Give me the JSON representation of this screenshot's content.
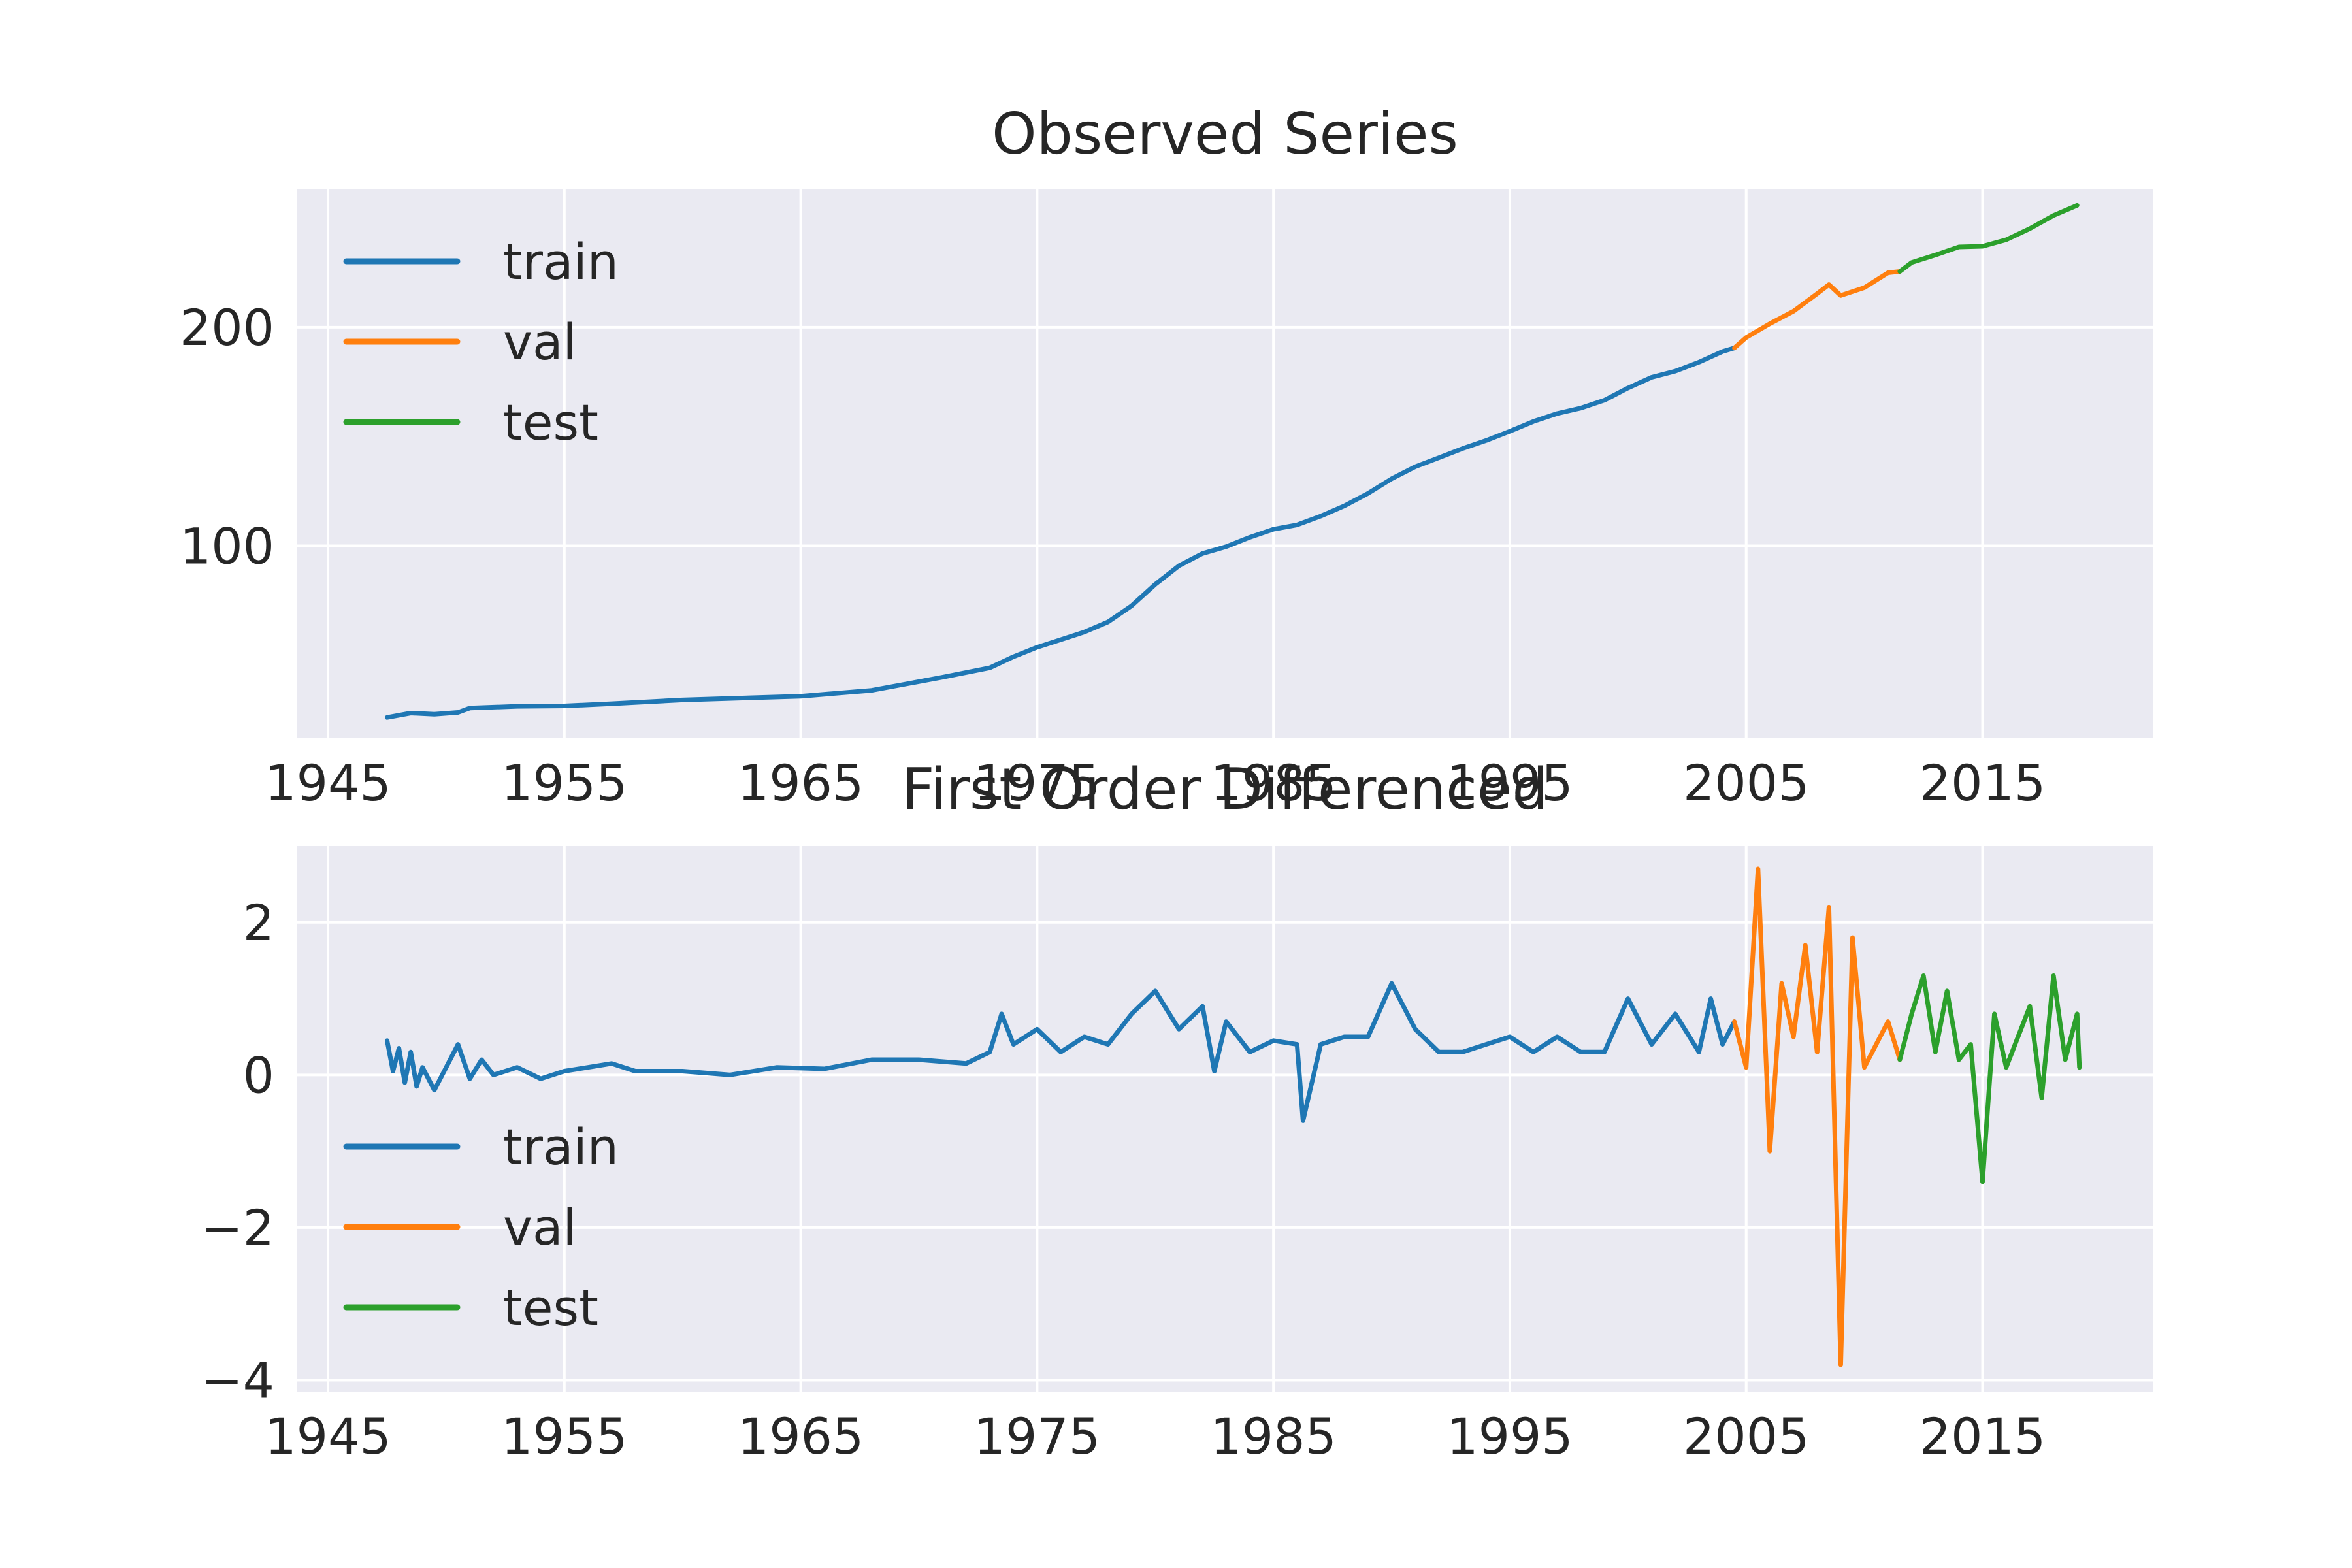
{
  "chart_data": [
    {
      "type": "line",
      "title": "Observed Series",
      "xlabel": "",
      "ylabel": "",
      "xlim": [
        1943.7,
        2022.2
      ],
      "ylim": [
        12,
        263
      ],
      "x_ticks": [
        "1945",
        "1955",
        "1965",
        "1975",
        "1985",
        "1995",
        "2005",
        "2015"
      ],
      "y_ticks": [
        "100",
        "200"
      ],
      "grid": true,
      "legend_position": "upper-left",
      "series": [
        {
          "name": "train",
          "color": "#1f77b4",
          "points": [
            [
              1947.5,
              21.5
            ],
            [
              1948.5,
              23.5
            ],
            [
              1949.5,
              23.0
            ],
            [
              1950.5,
              23.8
            ],
            [
              1951.0,
              25.8
            ],
            [
              1953,
              26.6
            ],
            [
              1955,
              26.8
            ],
            [
              1957,
              27.8
            ],
            [
              1960,
              29.5
            ],
            [
              1965,
              31.2
            ],
            [
              1968,
              33.9
            ],
            [
              1971,
              39.9
            ],
            [
              1973,
              44.2
            ],
            [
              1974,
              49.3
            ],
            [
              1975,
              53.6
            ],
            [
              1977,
              60.6
            ],
            [
              1978,
              65.2
            ],
            [
              1979,
              72.6
            ],
            [
              1980,
              82.4
            ],
            [
              1981,
              90.9
            ],
            [
              1982,
              96.5
            ],
            [
              1983,
              99.6
            ],
            [
              1984,
              103.9
            ],
            [
              1985,
              107.6
            ],
            [
              1986,
              109.6
            ],
            [
              1987,
              113.6
            ],
            [
              1988,
              118.3
            ],
            [
              1989,
              124.0
            ],
            [
              1990,
              130.7
            ],
            [
              1991,
              136.2
            ],
            [
              1992,
              140.3
            ],
            [
              1993,
              144.5
            ],
            [
              1994,
              148.2
            ],
            [
              1995,
              152.4
            ],
            [
              1996,
              156.9
            ],
            [
              1997,
              160.5
            ],
            [
              1998,
              163.0
            ],
            [
              1999,
              166.6
            ],
            [
              2000,
              172.2
            ],
            [
              2001,
              177.1
            ],
            [
              2002,
              179.9
            ],
            [
              2003,
              184.0
            ],
            [
              2004,
              188.9
            ],
            [
              2004.5,
              190.5
            ]
          ]
        },
        {
          "name": "val",
          "color": "#ff7f0e",
          "points": [
            [
              2004.5,
              190.5
            ],
            [
              2005,
              195.3
            ],
            [
              2006,
              201.6
            ],
            [
              2007,
              207.3
            ],
            [
              2008,
              215.3
            ],
            [
              2008.5,
              219.5
            ],
            [
              2009,
              214.5
            ],
            [
              2010,
              218.1
            ],
            [
              2011,
              224.9
            ],
            [
              2011.5,
              225.5
            ]
          ]
        },
        {
          "name": "test",
          "color": "#2ca02c",
          "points": [
            [
              2011.5,
              225.5
            ],
            [
              2012,
              229.6
            ],
            [
              2013,
              233.0
            ],
            [
              2014,
              236.7
            ],
            [
              2015,
              237.0
            ],
            [
              2016,
              240.0
            ],
            [
              2017,
              245.1
            ],
            [
              2018,
              251.1
            ],
            [
              2019,
              255.7
            ]
          ]
        }
      ]
    },
    {
      "type": "line",
      "title": "First Order Differenced",
      "xlabel": "",
      "ylabel": "",
      "xlim": [
        1943.7,
        2022.2
      ],
      "ylim": [
        -4.15,
        3.0
      ],
      "x_ticks": [
        "1945",
        "1955",
        "1965",
        "1975",
        "1985",
        "1995",
        "2005",
        "2015"
      ],
      "y_ticks": [
        "−4",
        "−2",
        "0",
        "2"
      ],
      "grid": true,
      "legend_position": "lower-left",
      "series": [
        {
          "name": "train",
          "color": "#1f77b4",
          "points": [
            [
              1947.5,
              0.45
            ],
            [
              1947.75,
              0.05
            ],
            [
              1948.0,
              0.35
            ],
            [
              1948.25,
              -0.1
            ],
            [
              1948.5,
              0.3
            ],
            [
              1948.75,
              -0.15
            ],
            [
              1949.0,
              0.1
            ],
            [
              1949.5,
              -0.2
            ],
            [
              1950.0,
              0.1
            ],
            [
              1950.5,
              0.4
            ],
            [
              1951.0,
              -0.05
            ],
            [
              1951.5,
              0.2
            ],
            [
              1952,
              0.0
            ],
            [
              1953,
              0.1
            ],
            [
              1954,
              -0.05
            ],
            [
              1955,
              0.05
            ],
            [
              1956,
              0.1
            ],
            [
              1957,
              0.15
            ],
            [
              1958,
              0.05
            ],
            [
              1960,
              0.05
            ],
            [
              1962,
              0.0
            ],
            [
              1964,
              0.1
            ],
            [
              1966,
              0.08
            ],
            [
              1968,
              0.2
            ],
            [
              1970,
              0.2
            ],
            [
              1972,
              0.15
            ],
            [
              1973,
              0.3
            ],
            [
              1973.5,
              0.8
            ],
            [
              1974,
              0.4
            ],
            [
              1975,
              0.6
            ],
            [
              1976,
              0.3
            ],
            [
              1977,
              0.5
            ],
            [
              1978,
              0.4
            ],
            [
              1979,
              0.8
            ],
            [
              1980,
              1.1
            ],
            [
              1981,
              0.6
            ],
            [
              1982,
              0.9
            ],
            [
              1982.5,
              0.05
            ],
            [
              1983,
              0.7
            ],
            [
              1984,
              0.3
            ],
            [
              1985,
              0.45
            ],
            [
              1986,
              0.4
            ],
            [
              1986.25,
              -0.6
            ],
            [
              1987,
              0.4
            ],
            [
              1988,
              0.5
            ],
            [
              1989,
              0.5
            ],
            [
              1990,
              1.2
            ],
            [
              1991,
              0.6
            ],
            [
              1992,
              0.3
            ],
            [
              1993,
              0.3
            ],
            [
              1994,
              0.4
            ],
            [
              1995,
              0.5
            ],
            [
              1996,
              0.3
            ],
            [
              1997,
              0.5
            ],
            [
              1998,
              0.3
            ],
            [
              1999,
              0.3
            ],
            [
              2000,
              1.0
            ],
            [
              2001,
              0.4
            ],
            [
              2002,
              0.8
            ],
            [
              2003,
              0.3
            ],
            [
              2003.5,
              1.0
            ],
            [
              2004,
              0.4
            ],
            [
              2004.5,
              0.7
            ]
          ]
        },
        {
          "name": "val",
          "color": "#ff7f0e",
          "points": [
            [
              2004.5,
              0.7
            ],
            [
              2005,
              0.1
            ],
            [
              2005.5,
              2.7
            ],
            [
              2006,
              -1.0
            ],
            [
              2006.5,
              1.2
            ],
            [
              2007,
              0.5
            ],
            [
              2007.5,
              1.7
            ],
            [
              2008,
              0.3
            ],
            [
              2008.5,
              2.2
            ],
            [
              2009,
              -3.8
            ],
            [
              2009.5,
              1.8
            ],
            [
              2010,
              0.1
            ],
            [
              2011,
              0.7
            ],
            [
              2011.5,
              0.2
            ]
          ]
        },
        {
          "name": "test",
          "color": "#2ca02c",
          "points": [
            [
              2011.5,
              0.2
            ],
            [
              2012,
              0.8
            ],
            [
              2012.5,
              1.3
            ],
            [
              2013,
              0.3
            ],
            [
              2013.5,
              1.1
            ],
            [
              2014,
              0.2
            ],
            [
              2014.5,
              0.4
            ],
            [
              2015,
              -1.4
            ],
            [
              2015.5,
              0.8
            ],
            [
              2016,
              0.1
            ],
            [
              2016.5,
              0.5
            ],
            [
              2017,
              0.9
            ],
            [
              2017.5,
              -0.3
            ],
            [
              2018,
              1.3
            ],
            [
              2018.5,
              0.2
            ],
            [
              2019,
              0.8
            ],
            [
              2019.1,
              0.1
            ]
          ]
        }
      ]
    }
  ]
}
